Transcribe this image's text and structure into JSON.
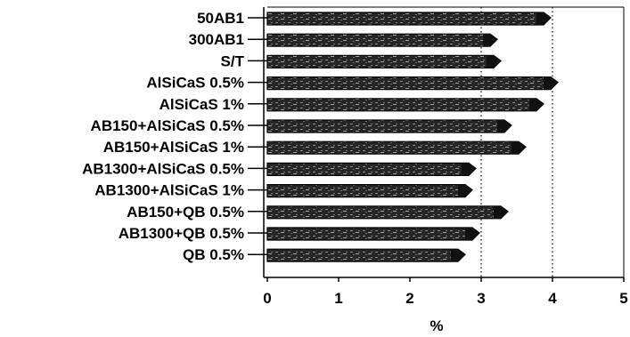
{
  "chart_data": {
    "type": "bar",
    "orientation": "horizontal",
    "style": "3d-textured",
    "categories": [
      "50AB1",
      "300AB1",
      "S/T",
      "AlSiCaS 0.5%",
      "AlSiCaS 1%",
      "AB150+AlSiCaS 0.5%",
      "AB150+AlSiCaS 1%",
      "AB1300+AlSiCaS 0.5%",
      "AB1300+AlSiCaS 1%",
      "AB150+QB 0.5%",
      "AB1300+QB 0.5%",
      "QB 0.5%"
    ],
    "values": [
      3.9,
      3.15,
      3.2,
      4.0,
      3.8,
      3.35,
      3.55,
      2.85,
      2.8,
      3.3,
      2.9,
      2.7
    ],
    "xlim": [
      0,
      5
    ],
    "xticks": [
      "0",
      "1",
      "2",
      "3",
      "4",
      "5"
    ],
    "xlabel": "%",
    "ylabel": "",
    "title": "",
    "grid": "vertical dotted at 3 and 4",
    "legend": "none",
    "colors": {
      "bar_face": "#1a1a1a",
      "bar_texture": "#9a9a9a",
      "background": "#ffffff",
      "axis": "#000000"
    }
  }
}
